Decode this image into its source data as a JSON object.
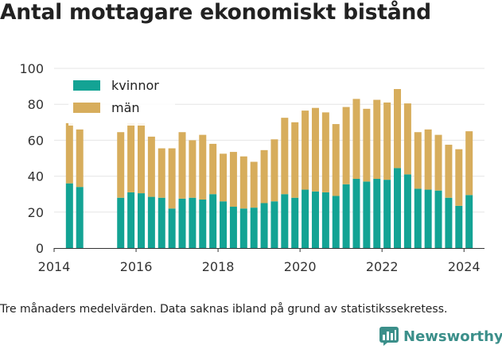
{
  "title": "Antal mottagare ekonomiskt bistånd",
  "footnote": "Tre månaders medelvärden. Data saknas ibland på grund av statistikssekretess.",
  "logo": {
    "text": "Newsworthy",
    "color": "#3b8f8a"
  },
  "colors": {
    "kvinnor": "#13a394",
    "man": "#d7ad5c",
    "axis": "#333333",
    "grid": "#e6e6e6"
  },
  "chart_data": {
    "type": "bar",
    "stacked": true,
    "title": "Antal mottagare ekonomiskt bistånd",
    "xlabel": "",
    "ylabel": "",
    "ylim": [
      0,
      100
    ],
    "yticks": [
      "0",
      "20",
      "40",
      "60",
      "80",
      "100"
    ],
    "xticks": [
      "2014",
      "2016",
      "2018",
      "2020",
      "2022",
      "2024"
    ],
    "xlim": [
      2014.0,
      2024.5
    ],
    "grid": true,
    "legend": "top-left",
    "x": [
      2014.375,
      2014.625,
      2015.625,
      2015.875,
      2016.125,
      2016.375,
      2016.625,
      2016.875,
      2017.125,
      2017.375,
      2017.625,
      2017.875,
      2018.125,
      2018.375,
      2018.625,
      2018.875,
      2019.125,
      2019.375,
      2019.625,
      2019.875,
      2020.125,
      2020.375,
      2020.625,
      2020.875,
      2021.125,
      2021.375,
      2021.625,
      2021.875,
      2022.125,
      2022.375,
      2022.625,
      2022.875,
      2023.125,
      2023.375,
      2023.625,
      2023.875,
      2024.125
    ],
    "series": [
      {
        "name": "kvinnor",
        "values": [
          36,
          34,
          28,
          31,
          30.5,
          28.5,
          28,
          22,
          27.5,
          28,
          27,
          30,
          26,
          23,
          22,
          22.5,
          25,
          26,
          30,
          28,
          32.5,
          31.5,
          31,
          29,
          35.5,
          38.5,
          37,
          38.5,
          38,
          44.5,
          41,
          33,
          32.5,
          32,
          28,
          23.5,
          29.5
        ]
      },
      {
        "name": "män",
        "values": [
          33.5,
          32,
          36.5,
          38.5,
          39,
          33.5,
          27.5,
          33.5,
          37,
          32,
          36,
          28,
          26.5,
          30.5,
          29,
          25.5,
          29.5,
          34.5,
          42.5,
          42,
          44,
          46.5,
          44.5,
          40,
          43,
          44.5,
          40.5,
          44,
          43,
          44,
          39.5,
          31.5,
          33.5,
          31,
          29.5,
          31.5,
          35.5
        ]
      }
    ]
  }
}
